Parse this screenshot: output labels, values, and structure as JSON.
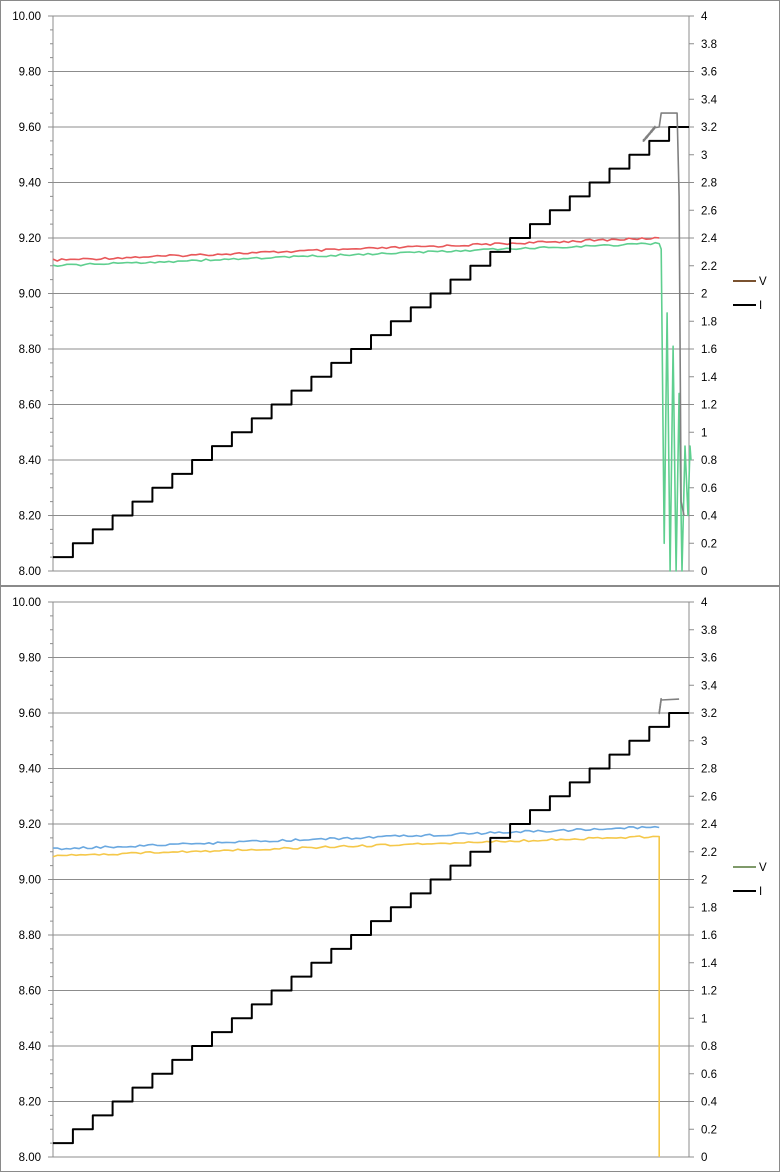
{
  "chart_data": [
    {
      "type": "line",
      "y_left": {
        "min": 8.0,
        "max": 10.0,
        "step": 0.2,
        "tick_labels": [
          "8.00",
          "8.20",
          "8.40",
          "8.60",
          "8.80",
          "9.00",
          "9.20",
          "9.40",
          "9.60",
          "9.80",
          "10.00"
        ]
      },
      "y_right": {
        "min": 0,
        "max": 4,
        "step": 0.2,
        "tick_labels": [
          "0",
          "0.2",
          "0.4",
          "0.6",
          "0.8",
          "1",
          "1.2",
          "1.4",
          "1.6",
          "1.8",
          "2",
          "2.2",
          "2.4",
          "2.6",
          "2.8",
          "3",
          "3.2",
          "3.4",
          "3.6",
          "3.8",
          "4"
        ]
      },
      "x_range": [
        0,
        32
      ],
      "grid": "horizontal major lines every 0.20",
      "legend": {
        "position": "right",
        "entries": [
          {
            "label": "V",
            "color": "#7a5230"
          },
          {
            "label": "I",
            "color": "#000000"
          }
        ]
      },
      "series": [
        {
          "axis": "left",
          "color": "#e8585a",
          "x": [
            0,
            30.5
          ],
          "y": [
            9.12,
            9.2
          ]
        },
        {
          "axis": "left",
          "color": "#5fcf8f",
          "x": [
            0,
            30.3,
            30.5,
            30.6,
            30.75,
            30.9,
            31.05,
            31.2,
            31.35,
            31.5,
            31.65,
            31.8,
            31.95,
            32.05,
            32.1
          ],
          "y": [
            9.1,
            9.18,
            9.18,
            9.16,
            8.1,
            8.93,
            8.0,
            8.81,
            8.0,
            8.64,
            8.0,
            8.45,
            8.2,
            8.45,
            8.4
          ]
        },
        {
          "axis": "right",
          "color": "#000000",
          "type": "step",
          "x": [
            0,
            1,
            2,
            3,
            4,
            5,
            6,
            7,
            8,
            9,
            10,
            11,
            12,
            13,
            14,
            15,
            16,
            17,
            18,
            19,
            20,
            21,
            22,
            23,
            24,
            25,
            26,
            27,
            28,
            29,
            30,
            31
          ],
          "y": [
            0.1,
            0.2,
            0.3,
            0.4,
            0.5,
            0.6,
            0.7,
            0.8,
            0.9,
            1.0,
            1.1,
            1.2,
            1.3,
            1.4,
            1.5,
            1.6,
            1.7,
            1.8,
            1.9,
            2.0,
            2.1,
            2.2,
            2.3,
            2.4,
            2.5,
            2.6,
            2.7,
            2.8,
            2.9,
            3.0,
            3.1,
            3.2
          ]
        },
        {
          "axis": "right",
          "color": "#808080",
          "x": [
            29.7,
            30.3,
            30.5,
            30.6,
            31.4,
            31.5,
            31.6,
            31.75
          ],
          "y": [
            3.1,
            3.2,
            3.2,
            3.3,
            3.3,
            2.7,
            0.5,
            0.4
          ]
        }
      ]
    },
    {
      "type": "line",
      "y_left": {
        "min": 8.0,
        "max": 10.0,
        "step": 0.2,
        "tick_labels": [
          "8.00",
          "8.20",
          "8.40",
          "8.60",
          "8.80",
          "9.00",
          "9.20",
          "9.40",
          "9.60",
          "9.80",
          "10.00"
        ]
      },
      "y_right": {
        "min": 0,
        "max": 4,
        "step": 0.2,
        "tick_labels": [
          "0",
          "0.2",
          "0.4",
          "0.6",
          "0.8",
          "1",
          "1.2",
          "1.4",
          "1.6",
          "1.8",
          "2",
          "2.2",
          "2.4",
          "2.6",
          "2.8",
          "3",
          "3.2",
          "3.4",
          "3.6",
          "3.8",
          "4"
        ]
      },
      "x_range": [
        0,
        32
      ],
      "grid": "horizontal major lines every 0.20",
      "legend": {
        "position": "right",
        "entries": [
          {
            "label": "V",
            "color": "#7f9a6a"
          },
          {
            "label": "I",
            "color": "#000000"
          }
        ]
      },
      "series": [
        {
          "axis": "left",
          "color": "#6aa8e0",
          "x": [
            0,
            30.5
          ],
          "y": [
            9.11,
            9.19
          ]
        },
        {
          "axis": "left",
          "color": "#f5c84a",
          "x": [
            0,
            30.2,
            30.5,
            30.5
          ],
          "y": [
            9.085,
            9.155,
            9.155,
            8.0
          ]
        },
        {
          "axis": "right",
          "color": "#000000",
          "type": "step",
          "x": [
            0,
            1,
            2,
            3,
            4,
            5,
            6,
            7,
            8,
            9,
            10,
            11,
            12,
            13,
            14,
            15,
            16,
            17,
            18,
            19,
            20,
            21,
            22,
            23,
            24,
            25,
            26,
            27,
            28,
            29,
            30,
            31
          ],
          "y": [
            0.1,
            0.2,
            0.3,
            0.4,
            0.5,
            0.6,
            0.7,
            0.8,
            0.9,
            1.0,
            1.1,
            1.2,
            1.3,
            1.4,
            1.5,
            1.6,
            1.7,
            1.8,
            1.9,
            2.0,
            2.1,
            2.2,
            2.3,
            2.4,
            2.5,
            2.6,
            2.7,
            2.8,
            2.9,
            3.0,
            3.1,
            3.2
          ]
        },
        {
          "axis": "right",
          "color": "#808080",
          "x": [
            30.5,
            30.6,
            31.5
          ],
          "y": [
            3.2,
            3.3,
            3.3
          ]
        }
      ]
    }
  ]
}
